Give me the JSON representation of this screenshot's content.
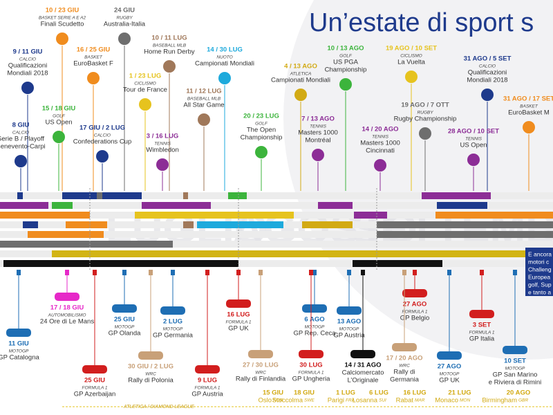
{
  "title": "Un’estate di sport s",
  "months": [
    "LUGLIO",
    "AGOSTO",
    "SETTEMBRE"
  ],
  "top_events": [
    {
      "date": "10 / 23 GIU",
      "category": "BASKET SERIE A E A2",
      "name": [
        "Finali Scudetto"
      ],
      "color": "#f08c1e"
    },
    {
      "date": "24 GIU",
      "category": "RUGBY",
      "name": [
        "Australia-Italia"
      ],
      "color": "#6e6e6e"
    },
    {
      "date": "9 / 11 GIU",
      "category": "CALCIO",
      "name": [
        "Qualificazioni",
        "Mondiali 2018"
      ],
      "color": "#1e3a8c"
    },
    {
      "date": "16 / 25 GIU",
      "category": "BASKET",
      "name": [
        "EuroBasket F"
      ],
      "color": "#f08c1e"
    },
    {
      "date": "10 / 11 LUG",
      "category": "BASEBALL MLB",
      "name": [
        "Home Run Derby"
      ],
      "color": "#a0785a"
    },
    {
      "date": "14 / 30 LUG",
      "category": "NUOTO",
      "name": [
        "Campionati Mondiali"
      ],
      "color": "#1eaadc"
    },
    {
      "date": "10 / 13 AGO",
      "category": "GOLF",
      "name": [
        "US PGA",
        "Championship"
      ],
      "color": "#3cb43c"
    },
    {
      "date": "19 AGO / 10 SET",
      "category": "CICLISMO",
      "name": [
        "La Vuelta"
      ],
      "color": "#e6c31e"
    },
    {
      "date": "31 AGO / 5 SET",
      "category": "CALCIO",
      "name": [
        "Qualificazioni",
        "Mondiali 2018"
      ],
      "color": "#1e3a8c"
    },
    {
      "date": "1 / 23 LUG",
      "category": "CICLISMO",
      "name": [
        "Tour de France"
      ],
      "color": "#e6c31e"
    },
    {
      "date": "4 / 13 AGO",
      "category": "ATLETICA",
      "name": [
        "Campionati Mondiali"
      ],
      "color": "#d2aa14"
    },
    {
      "date": "15 / 18 GIU",
      "category": "GOLF",
      "name": [
        "US Open"
      ],
      "color": "#3cb43c"
    },
    {
      "date": "11 / 12 LUG",
      "category": "BASEBALL MLB",
      "name": [
        "All Star Game"
      ],
      "color": "#a0785a"
    },
    {
      "date": "19 AGO / 7 OTT",
      "category": "RUGBY",
      "name": [
        "Rugby Championship"
      ],
      "color": "#6e6e6e"
    },
    {
      "date": "31 AGO / 17 SET",
      "category": "BASKET",
      "name": [
        "EuroBasket M"
      ],
      "color": "#f08c1e"
    },
    {
      "date": "8 GIU",
      "category": "CALCIO",
      "name": [
        "Serie B / Playoff",
        "Benevento-Carpi"
      ],
      "color": "#1e3a8c"
    },
    {
      "date": "17 GIU / 2 LUG",
      "category": "CALCIO",
      "name": [
        "Confederations Cup"
      ],
      "color": "#1e3a8c"
    },
    {
      "date": "20 / 23 LUG",
      "category": "GOLF",
      "name": [
        "The Open",
        "Championship"
      ],
      "color": "#3cb43c"
    },
    {
      "date": "7 / 13 AGO",
      "category": "TENNIS",
      "name": [
        "Masters 1000",
        "Montréal"
      ],
      "color": "#8c2d96"
    },
    {
      "date": "14 / 20 AGO",
      "category": "TENNIS",
      "name": [
        "Masters 1000",
        "Cincinnati"
      ],
      "color": "#8c2d96"
    },
    {
      "date": "28 AGO / 10 SET",
      "category": "TENNIS",
      "name": [
        "US Open"
      ],
      "color": "#8c2d96"
    },
    {
      "date": "3 / 16 LUG",
      "category": "TENNIS",
      "name": [
        "Wimbledon"
      ],
      "color": "#8c2d96"
    }
  ],
  "bottom_events": [
    {
      "date": "17 / 18 GIU",
      "category": "AUTOMOBILISMO",
      "name": [
        "24 Ore di Le Mans"
      ],
      "color": "#e628c8"
    },
    {
      "date": "11 GIU",
      "category": "MOTOGP",
      "name": [
        "GP Catalogna"
      ],
      "color": "#1e6eb4"
    },
    {
      "date": "25 GIU",
      "category": "MOTOGP",
      "name": [
        "GP Olanda"
      ],
      "color": "#1e6eb4"
    },
    {
      "date": "2 LUG",
      "category": "MOTOGP",
      "name": [
        "GP Germania"
      ],
      "color": "#1e6eb4"
    },
    {
      "date": "16 LUG",
      "category": "FORMULA 1",
      "name": [
        "GP UK"
      ],
      "color": "#d21e1e"
    },
    {
      "date": "6 AGO",
      "category": "MOTOGP",
      "name": [
        "GP Rep. Ceca"
      ],
      "color": "#1e6eb4"
    },
    {
      "date": "13 AGO",
      "category": "MOTOGP",
      "name": [
        "GP Austria"
      ],
      "color": "#1e6eb4"
    },
    {
      "date": "27 AGO",
      "category": "FORMULA 1",
      "name": [
        "GP Belgio"
      ],
      "color": "#d21e1e"
    },
    {
      "date": "3 SET",
      "category": "FORMULA 1",
      "name": [
        "GP Italia"
      ],
      "color": "#d21e1e"
    },
    {
      "date": "25 GIU",
      "category": "FORMULA 1",
      "name": [
        "GP Azerbaijan"
      ],
      "color": "#d21e1e"
    },
    {
      "date": "30 GIU / 2 LUG",
      "category": "WRC",
      "name": [
        "Rally di Polonia"
      ],
      "color": "#c8a078"
    },
    {
      "date": "9 LUG",
      "category": "FORMULA 1",
      "name": [
        "GP Austria"
      ],
      "color": "#d21e1e"
    },
    {
      "date": "27 / 30 LUG",
      "category": "WRC",
      "name": [
        "Rally di Finlandia"
      ],
      "color": "#c8a078"
    },
    {
      "date": "30 LUG",
      "category": "FORMULA 1",
      "name": [
        "GP Ungheria"
      ],
      "color": "#d21e1e"
    },
    {
      "date": "14 / 31 AGO",
      "name": [
        "Calciomercato",
        "L’Originale"
      ],
      "color": "#111111"
    },
    {
      "date": "17 / 20 AGO",
      "category": "WRC",
      "name": [
        "Rally di",
        "Germania"
      ],
      "color": "#c8a078"
    },
    {
      "date": "27 AGO",
      "category": "MOTOGP",
      "name": [
        "GP UK"
      ],
      "color": "#1e6eb4"
    },
    {
      "date": "10 SET",
      "category": "MOTOGP",
      "name": [
        "GP San Marino",
        "e Riviera di Rimini"
      ],
      "color": "#1e6eb4"
    }
  ],
  "diamond_league": {
    "label": "ATLETICA / DIAMOND LEAGUE",
    "color": "#e6c31e",
    "items": [
      {
        "date": "15 GIU",
        "city": "Oslo",
        "country": "NOR"
      },
      {
        "date": "18 GIU",
        "city": "Stoccolma",
        "country": "SWE"
      },
      {
        "date": "1 LUG",
        "city": "Parigi",
        "country": "FRA"
      },
      {
        "date": "6 LUG",
        "city": "Losanna",
        "country": "SUI"
      },
      {
        "date": "16 LUG",
        "city": "Rabat",
        "country": "MAR"
      },
      {
        "date": "21 LUG",
        "city": "Monaco",
        "country": "MON"
      },
      {
        "date": "20 AGO",
        "city": "Birmingham",
        "country": "GBR"
      }
    ]
  },
  "note": [
    "E ancora",
    "motori c",
    "Challeng",
    "Europea",
    "golf, Sup",
    "e tanto a"
  ]
}
